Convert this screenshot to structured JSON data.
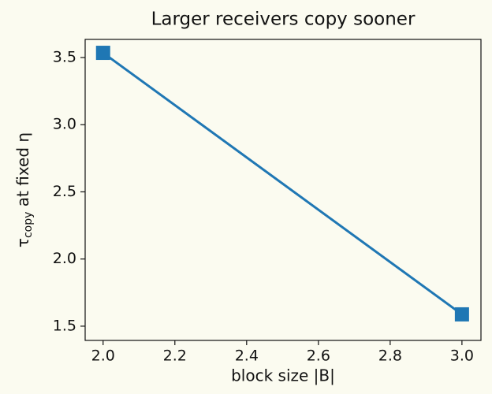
{
  "chart_data": {
    "type": "line",
    "title": "Larger receivers copy sooner",
    "xlabel": "block size |B|",
    "ylabel": {
      "symbol": "τ",
      "subscript": "copy",
      "rest": " at fixed η"
    },
    "x": [
      2.0,
      3.0
    ],
    "series": [
      {
        "color": "#1f77b4",
        "marker": "square",
        "values": [
          3.535,
          1.588
        ]
      }
    ],
    "xlim": [
      1.95,
      3.053
    ],
    "xticks": [
      {
        "value": 2,
        "label": "2.0"
      },
      2.2,
      2.4,
      2.6,
      2.8,
      {
        "value": 3,
        "label": "3.0"
      }
    ],
    "ylim": [
      1.394,
      3.635
    ],
    "yticks": [
      1.5,
      {
        "value": 2,
        "label": "2.0"
      },
      2.5,
      {
        "value": 3,
        "label": "3.0"
      },
      3.5
    ],
    "grid": false
  }
}
